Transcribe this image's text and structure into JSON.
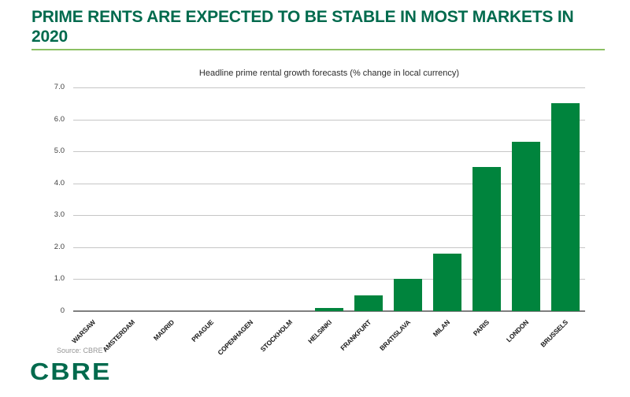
{
  "header": {
    "title_line1": "PRIME RENTS ARE EXPECTED TO BE STABLE IN MOST MARKETS IN",
    "title_line2": "2020"
  },
  "colors": {
    "title_green": "#006A4D",
    "underline_green": "#8CC063",
    "bar_green": "#00843D",
    "gridline_gray": "#C6C6C6",
    "axis_line_gray": "#7F7F7F",
    "source_gray": "#969696",
    "logo_green": "#006A4D"
  },
  "chart_data": {
    "type": "bar",
    "title": "Headline prime rental growth forecasts (% change in local currency)",
    "categories": [
      "WARSAW",
      "AMSTERDAM",
      "MADRID",
      "PRAGUE",
      "COPENHAGEN",
      "STOCKHOLM",
      "HELSINKI",
      "FRANKFURT",
      "BRATISLAVA",
      "MILAN",
      "PARIS",
      "LONDON",
      "BRUSSELS"
    ],
    "values": [
      0.0,
      0.0,
      0.0,
      0.0,
      0.0,
      0.0,
      0.1,
      0.5,
      1.0,
      1.8,
      4.5,
      5.3,
      6.5
    ],
    "xlabel": "",
    "ylabel": "",
    "ylim": [
      0,
      7
    ],
    "ytick_labels": [
      "0",
      "1.0",
      "2.0",
      "3.0",
      "4.0",
      "5.0",
      "6.0",
      "7.0"
    ],
    "grid": true,
    "legend": "none",
    "bar_color": "#00843D"
  },
  "footer": {
    "source": "Source: CBRE",
    "logo_text": "CBRE"
  }
}
